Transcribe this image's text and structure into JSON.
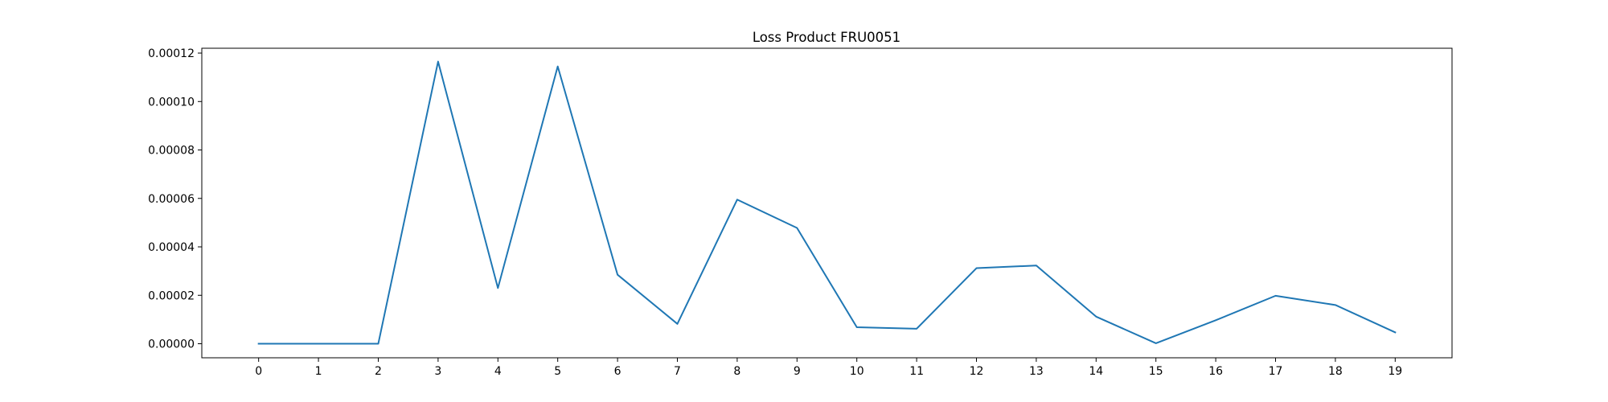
{
  "chart_data": {
    "type": "line",
    "title": "Loss Product FRU0051",
    "xlabel": "",
    "ylabel": "",
    "x": [
      0,
      1,
      2,
      3,
      4,
      5,
      6,
      7,
      8,
      9,
      10,
      11,
      12,
      13,
      14,
      15,
      16,
      17,
      18,
      19
    ],
    "x_tick_labels": [
      "0",
      "1",
      "2",
      "3",
      "4",
      "5",
      "6",
      "7",
      "8",
      "9",
      "10",
      "11",
      "12",
      "13",
      "14",
      "15",
      "16",
      "17",
      "18",
      "19"
    ],
    "series": [
      {
        "values": [
          0.0,
          0.0,
          0.0,
          0.0001165,
          2.3e-05,
          0.0001145,
          2.85e-05,
          8.2e-06,
          5.95e-05,
          4.78e-05,
          6.8e-06,
          6.2e-06,
          3.12e-05,
          3.23e-05,
          1.12e-05,
          2e-07,
          9.7e-06,
          1.98e-05,
          1.6e-05,
          4.7e-06
        ],
        "color": "#1f77b4"
      }
    ],
    "y_ticks": [
      0.0,
      2e-05,
      4e-05,
      6e-05,
      8e-05,
      0.0001,
      0.00012
    ],
    "y_tick_labels": [
      "0.00000",
      "0.00002",
      "0.00004",
      "0.00006",
      "0.00008",
      "0.00010",
      "0.00012"
    ],
    "ylim": [
      -5.8e-06,
      0.000122
    ],
    "xlim": [
      -0.95,
      19.95
    ],
    "grid": false,
    "legend": "none"
  }
}
